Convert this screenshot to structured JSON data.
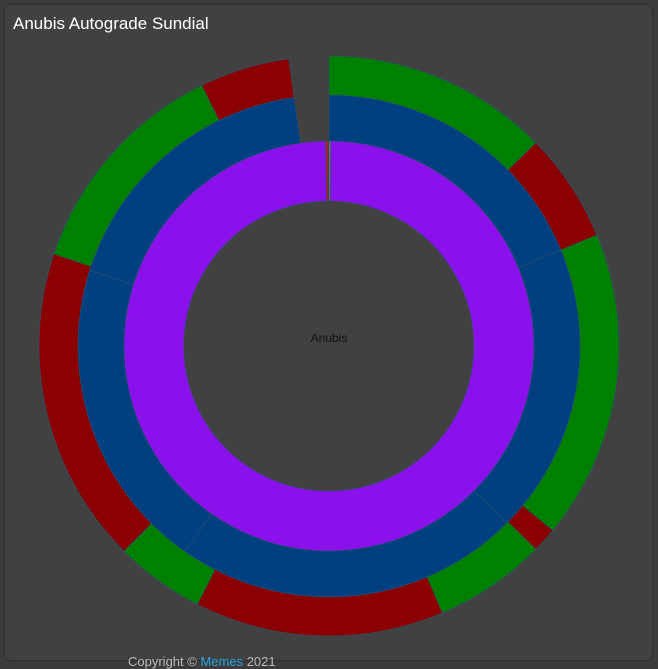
{
  "title": "Anubis Autograde Sundial",
  "center_label": "Anubis",
  "footer": {
    "prefix": "Copyright © ",
    "link": "Memes",
    "suffix": " 2021"
  },
  "colors": {
    "background": "#414141",
    "passed": "#008000",
    "failed": "#8b0000",
    "submission": "#004080",
    "assignment": "#8a10ec",
    "missing": "#808080",
    "hot": "#ff0000"
  },
  "chart_data": {
    "type": "sunburst",
    "center": "Anubis",
    "rings": [
      {
        "level": 1,
        "segments": [
          {
            "start": 0.0,
            "end": 0.5,
            "color": "missing"
          },
          {
            "start": 0.5,
            "end": 359.0,
            "color": "assignment"
          },
          {
            "start": 359.0,
            "end": 359.5,
            "color": "hot"
          }
        ]
      },
      {
        "level": 2,
        "segments": [
          {
            "start": 0.0,
            "end": 67.5,
            "color": "submission"
          },
          {
            "start": 67.5,
            "end": 135.0,
            "color": "submission"
          },
          {
            "start": 135.0,
            "end": 215.0,
            "color": "submission"
          },
          {
            "start": 215.0,
            "end": 287.5,
            "color": "submission"
          },
          {
            "start": 287.5,
            "end": 352.0,
            "color": "submission"
          }
        ]
      },
      {
        "level": 3,
        "segments": [
          {
            "start": 0.0,
            "end": 45.5,
            "color": "passed"
          },
          {
            "start": 45.5,
            "end": 67.5,
            "color": "failed"
          },
          {
            "start": 67.5,
            "end": 129.5,
            "color": "passed"
          },
          {
            "start": 129.5,
            "end": 134.5,
            "color": "failed"
          },
          {
            "start": 134.5,
            "end": 157.0,
            "color": "passed"
          },
          {
            "start": 157.0,
            "end": 207.0,
            "color": "failed"
          },
          {
            "start": 207.0,
            "end": 225.0,
            "color": "passed"
          },
          {
            "start": 225.0,
            "end": 288.5,
            "color": "failed"
          },
          {
            "start": 288.5,
            "end": 334.0,
            "color": "passed"
          },
          {
            "start": 334.0,
            "end": 352.0,
            "color": "failed"
          }
        ]
      }
    ]
  }
}
